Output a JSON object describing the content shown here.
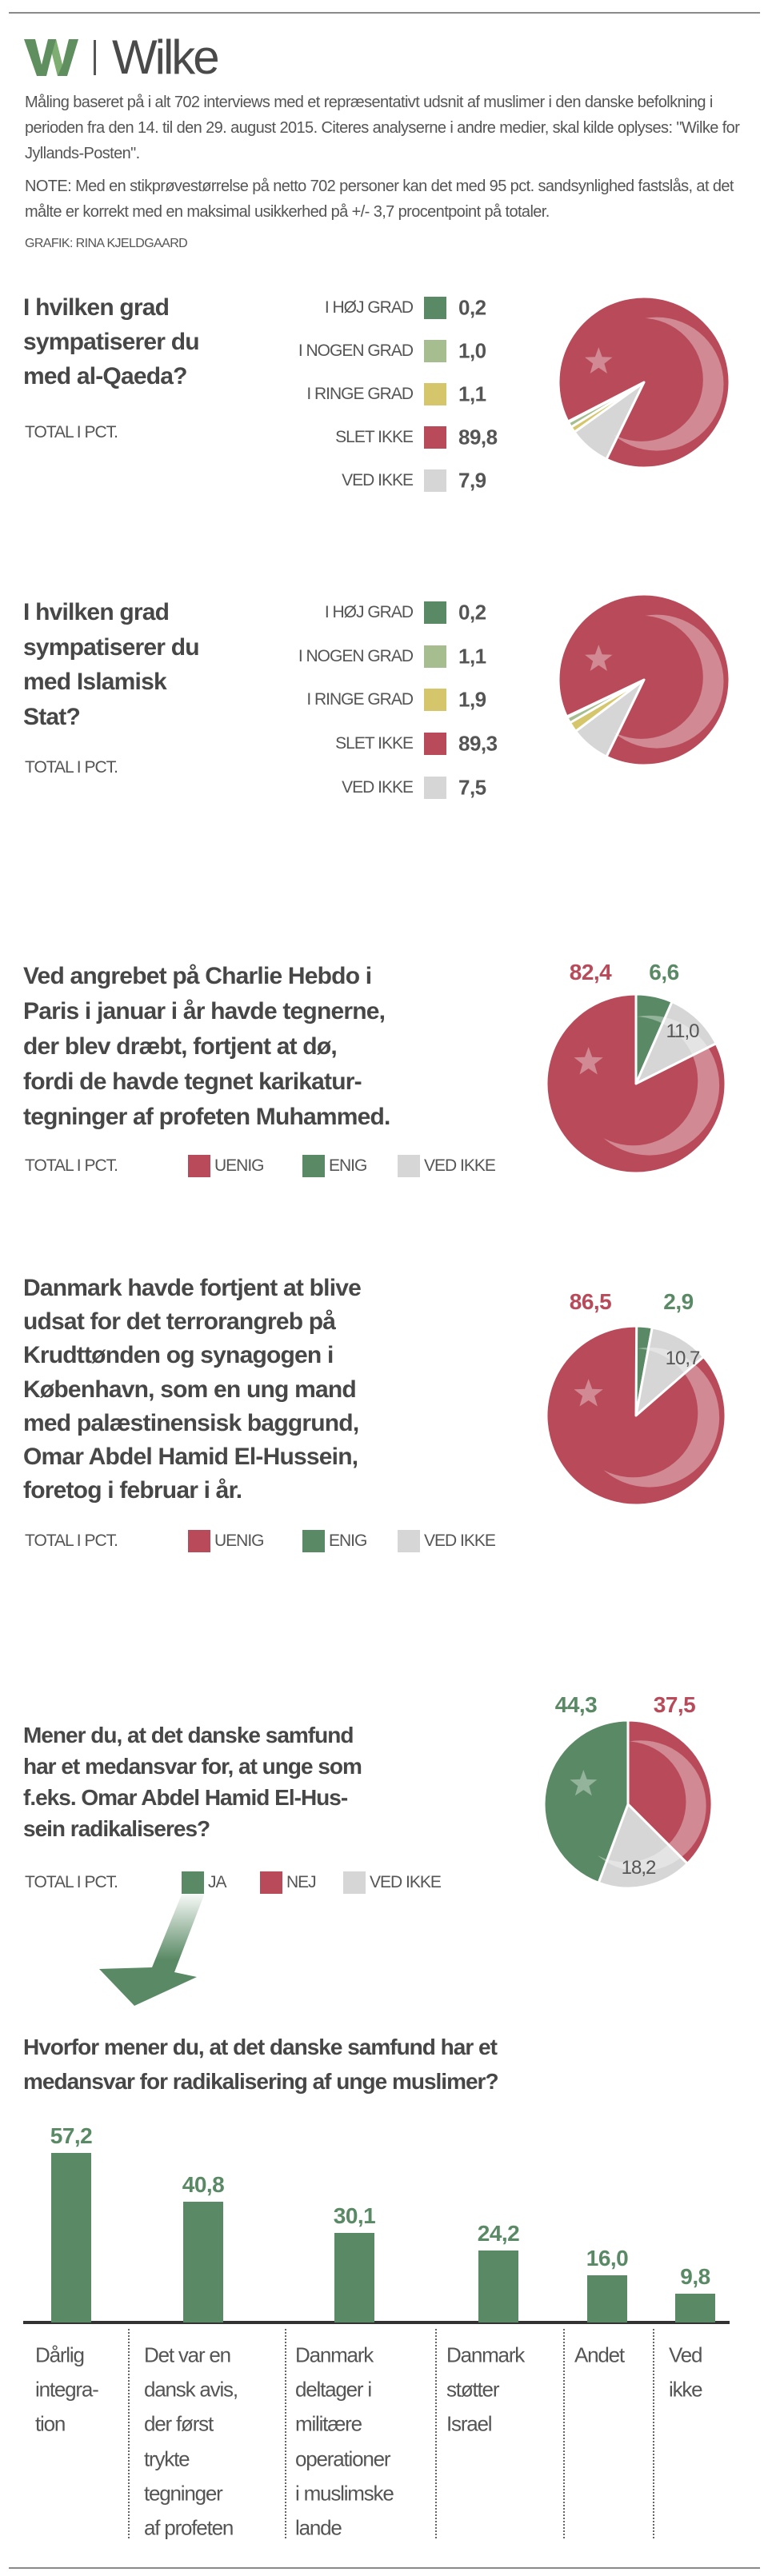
{
  "header": {
    "logo_text": "Wilke",
    "intro": "Måling baseret på i alt 702 interviews med et repræsentativt udsnit af muslimer i den danske befolkning i perioden fra den 14. til den 29. august 2015. Citeres analyserne i andre medier, skal kilde oplyses: \"Wilke for Jyllands-Posten\".",
    "note": "NOTE: Med en stikprøvestørrelse på netto 702 personer kan det med 95 pct. sandsynlighed fastslås, at det målte er korrekt med en maksimal usikkerhed på +/- 3,7 procentpoint på totaler.",
    "credit": "GRAFIK: RINA KJELDGAARD"
  },
  "colors": {
    "red": "#b94a5a",
    "green": "#5a8a65",
    "light_green": "#a6bd8f",
    "yellow": "#d6c66b",
    "grey": "#d6d6d6",
    "text": "#474747"
  },
  "chart_data": [
    {
      "type": "pie",
      "title_lines": [
        "I hvilken grad",
        "sympatiserer du",
        "med al-Qaeda?"
      ],
      "note": "TOTAL I PCT.",
      "categories": [
        "I HØJ GRAD",
        "I NOGEN GRAD",
        "I RINGE GRAD",
        "SLET IKKE",
        "VED IKKE"
      ],
      "values": [
        "0,2",
        "1,0",
        "1,1",
        "89,8",
        "7,9"
      ],
      "numeric_values": [
        0.2,
        1.0,
        1.1,
        89.8,
        7.9
      ],
      "colors": [
        "#5a8a65",
        "#a6bd8f",
        "#d6c66b",
        "#b94a5a",
        "#d6d6d6"
      ]
    },
    {
      "type": "pie",
      "title_lines": [
        "I hvilken grad",
        "sympatiserer du",
        "med Islamisk",
        "Stat?"
      ],
      "note": "TOTAL I PCT.",
      "categories": [
        "I HØJ GRAD",
        "I NOGEN GRAD",
        "I RINGE GRAD",
        "SLET IKKE",
        "VED IKKE"
      ],
      "values": [
        "0,2",
        "1,1",
        "1,9",
        "89,3",
        "7,5"
      ],
      "numeric_values": [
        0.2,
        1.1,
        1.9,
        89.3,
        7.5
      ],
      "colors": [
        "#5a8a65",
        "#a6bd8f",
        "#d6c66b",
        "#b94a5a",
        "#d6d6d6"
      ]
    },
    {
      "type": "pie",
      "title_lines": [
        "Ved angrebet på Charlie Hebdo i",
        "Paris i januar i år havde tegnerne,",
        "der blev dræbt, fortjent at dø,",
        "fordi de havde tegnet karikatur-",
        "tegninger af profeten Muhammed."
      ],
      "note": "TOTAL I PCT.",
      "categories": [
        "UENIG",
        "ENIG",
        "VED IKKE"
      ],
      "values": [
        "82,4",
        "6,6",
        "11,0"
      ],
      "numeric_values": [
        82.4,
        6.6,
        11.0
      ],
      "colors": [
        "#b94a5a",
        "#5a8a65",
        "#d6d6d6"
      ]
    },
    {
      "type": "pie",
      "title_lines": [
        "Danmark havde fortjent at blive",
        "udsat for det terrorangreb på",
        "Krudttønden og synagogen i",
        "København, som en ung mand",
        "med palæstinensisk baggrund,",
        "Omar Abdel Hamid El-Hussein,",
        "foretog i februar i år."
      ],
      "note": "TOTAL I PCT.",
      "categories": [
        "UENIG",
        "ENIG",
        "VED IKKE"
      ],
      "values": [
        "86,5",
        "2,9",
        "10,7"
      ],
      "numeric_values": [
        86.5,
        2.9,
        10.7
      ],
      "colors": [
        "#b94a5a",
        "#5a8a65",
        "#d6d6d6"
      ]
    },
    {
      "type": "pie",
      "title_lines": [
        "Mener du, at det danske samfund",
        "har et medansvar for, at unge som",
        "f.eks. Omar Abdel Hamid El-Hus-",
        "sein radikaliseres?"
      ],
      "note": "TOTAL I PCT.",
      "categories": [
        "JA",
        "NEJ",
        "VED IKKE"
      ],
      "values": [
        "44,3",
        "37,5",
        "18,2"
      ],
      "numeric_values": [
        44.3,
        37.5,
        18.2
      ],
      "colors": [
        "#5a8a65",
        "#b94a5a",
        "#d6d6d6"
      ]
    },
    {
      "type": "bar",
      "title_lines": [
        "Hvorfor mener du, at det danske samfund har et",
        "medansvar for radikalisering af unge muslimer?"
      ],
      "categories": [
        [
          "Dårlig",
          "integra-",
          "tion"
        ],
        [
          "Det var en",
          "dansk avis,",
          "der først",
          "trykte",
          "tegninger",
          "af profeten"
        ],
        [
          "Danmark",
          "deltager i",
          "militære",
          "operationer",
          "i muslimske",
          "lande"
        ],
        [
          "Danmark",
          "støtter",
          "Israel"
        ],
        [
          "Andet"
        ],
        [
          "Ved",
          "ikke"
        ]
      ],
      "values": [
        "57,2",
        "40,8",
        "30,1",
        "24,2",
        "16,0",
        "9,8"
      ],
      "numeric_values": [
        57.2,
        40.8,
        30.1,
        24.2,
        16.0,
        9.8
      ],
      "color": "#5a8a65",
      "grid": false
    }
  ]
}
